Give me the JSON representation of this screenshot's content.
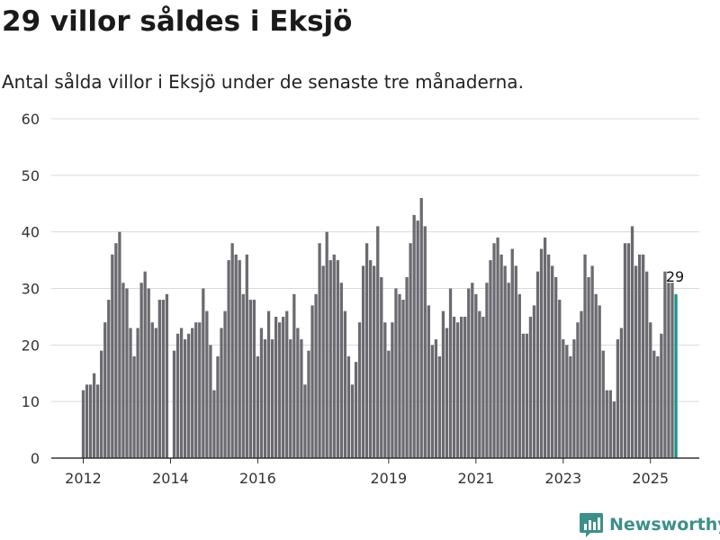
{
  "title": "29 villor såldes i Eksjö",
  "subtitle": "Antal sålda villor i Eksjö under de senaste tre månaderna.",
  "brand": {
    "name": "Newsworthy",
    "icon": "newsworthy-logo-icon",
    "color": "#3d8f8a"
  },
  "colors": {
    "bar": "#6b6a70",
    "highlight": "#17948f",
    "grid": "#d9d9d9",
    "axis": "#333333"
  },
  "chart_data": {
    "type": "bar",
    "x_start": "2012-01",
    "x_step": "month",
    "ylim": [
      0,
      60
    ],
    "yticks": [
      0,
      10,
      20,
      30,
      40,
      50,
      60
    ],
    "xticks": [
      "2012",
      "2014",
      "2016",
      "2019",
      "2021",
      "2023",
      "2025"
    ],
    "grid": true,
    "highlight_last": true,
    "last_label": "29",
    "values": [
      12,
      13,
      13,
      15,
      13,
      19,
      24,
      28,
      36,
      38,
      40,
      31,
      30,
      23,
      18,
      23,
      31,
      33,
      30,
      24,
      23,
      28,
      28,
      29,
      null,
      19,
      22,
      23,
      21,
      22,
      23,
      24,
      24,
      30,
      26,
      20,
      12,
      18,
      23,
      26,
      35,
      38,
      36,
      35,
      29,
      36,
      28,
      28,
      18,
      23,
      21,
      26,
      21,
      25,
      24,
      25,
      26,
      21,
      29,
      23,
      21,
      13,
      19,
      27,
      29,
      38,
      34,
      40,
      35,
      36,
      35,
      31,
      26,
      18,
      13,
      17,
      24,
      34,
      38,
      35,
      34,
      41,
      32,
      24,
      19,
      24,
      30,
      29,
      28,
      32,
      38,
      43,
      42,
      46,
      41,
      27,
      20,
      21,
      18,
      26,
      23,
      30,
      25,
      24,
      25,
      25,
      30,
      31,
      29,
      26,
      25,
      31,
      35,
      38,
      39,
      36,
      34,
      31,
      37,
      34,
      29,
      22,
      22,
      25,
      27,
      33,
      37,
      39,
      36,
      34,
      32,
      28,
      21,
      20,
      18,
      21,
      24,
      26,
      36,
      32,
      34,
      29,
      27,
      19,
      12,
      12,
      10,
      21,
      23,
      38,
      38,
      41,
      34,
      36,
      36,
      33,
      24,
      19,
      18,
      22,
      33,
      31,
      31,
      29
    ]
  }
}
